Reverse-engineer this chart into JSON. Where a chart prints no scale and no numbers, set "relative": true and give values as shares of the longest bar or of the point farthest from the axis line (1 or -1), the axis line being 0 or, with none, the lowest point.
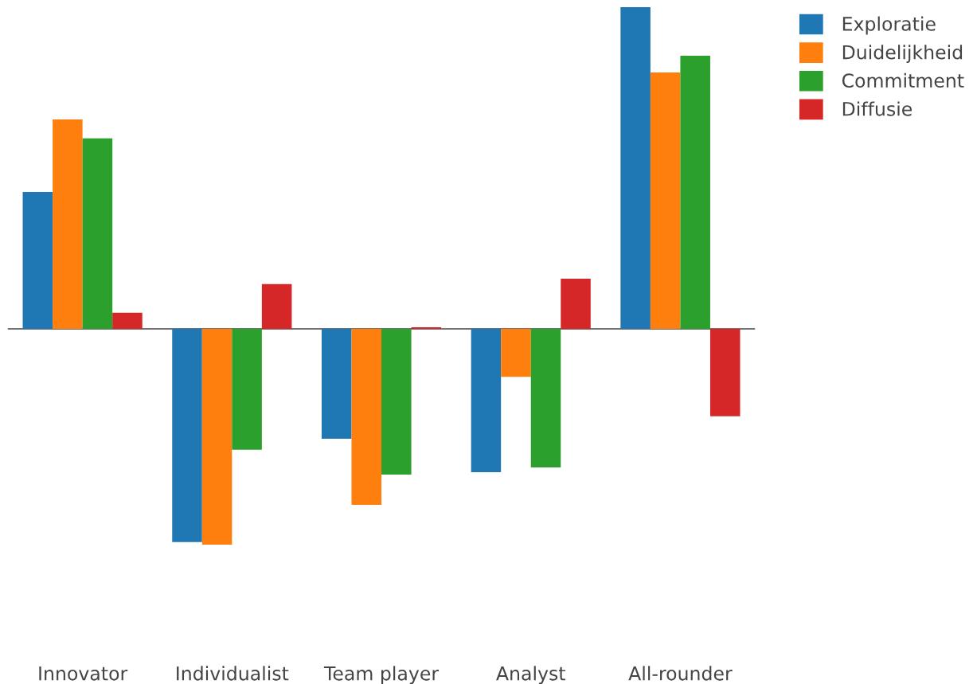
{
  "chart_data": {
    "type": "bar",
    "relative": true,
    "legend": "top right",
    "categories": [
      "Innovator",
      "Individualist",
      "Team player",
      "Analyst",
      "All-rounder"
    ],
    "series": [
      {
        "name": "Exploratie",
        "color": "#1f77b4",
        "values": [
          0.426,
          -0.663,
          -0.342,
          -0.446,
          1
        ]
      },
      {
        "name": "Duidelijkheid",
        "color": "#ff7f0e",
        "values": [
          0.651,
          -0.671,
          -0.547,
          -0.149,
          0.797
        ]
      },
      {
        "name": "Commitment",
        "color": "#2ca02c",
        "values": [
          0.592,
          -0.376,
          -0.453,
          -0.431,
          0.849
        ]
      },
      {
        "name": "Diffusie",
        "color": "#d62728",
        "values": [
          0.05,
          0.139,
          0.005,
          0.156,
          -0.272
        ]
      }
    ]
  }
}
